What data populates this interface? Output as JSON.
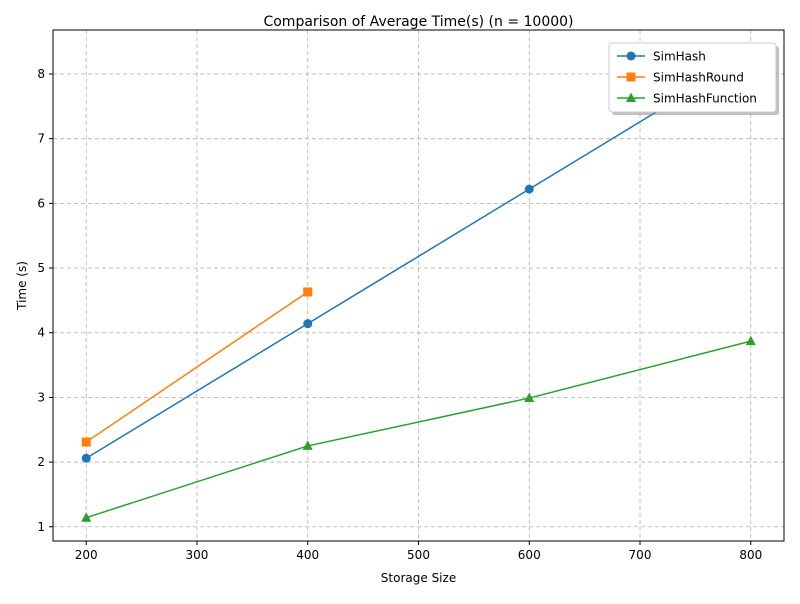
{
  "chart_data": {
    "type": "line",
    "title": "Comparison of Average Time(s) (n = 10000)",
    "xlabel": "Storage Size",
    "ylabel": "Time (s)",
    "xlim": [
      170,
      830
    ],
    "ylim": [
      0.78,
      8.68
    ],
    "x_ticks": [
      200,
      300,
      400,
      500,
      600,
      700,
      800
    ],
    "y_ticks": [
      1,
      2,
      3,
      4,
      5,
      6,
      7,
      8
    ],
    "grid": true,
    "legend_position": "top-right",
    "series": [
      {
        "name": "SimHash",
        "color": "#1f77b4",
        "marker": "circle",
        "x": [
          200,
          400,
          600,
          800
        ],
        "y": [
          2.06,
          4.14,
          6.22,
          8.3
        ]
      },
      {
        "name": "SimHashRound",
        "color": "#ff7f0e",
        "marker": "square",
        "x": [
          200,
          400
        ],
        "y": [
          2.31,
          4.63
        ]
      },
      {
        "name": "SimHashFunction",
        "color": "#2ca02c",
        "marker": "triangle",
        "x": [
          200,
          400,
          600,
          800
        ],
        "y": [
          1.14,
          2.25,
          2.99,
          3.87
        ]
      }
    ]
  }
}
